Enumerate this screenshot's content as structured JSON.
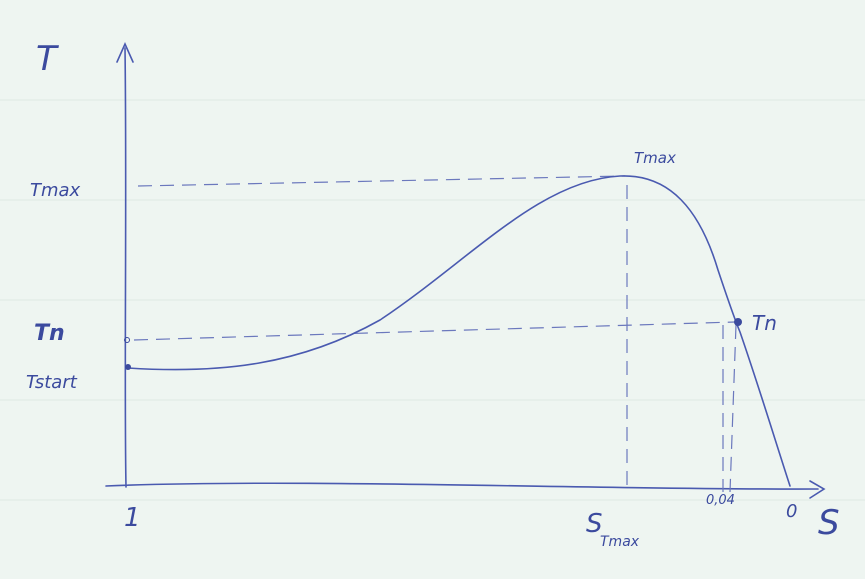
{
  "axes": {
    "y_label": "T",
    "x_label": "S"
  },
  "y_labels": {
    "t_max": "Tmax",
    "t_n": "Tn",
    "t_start": "Tstart"
  },
  "x_labels": {
    "start": "1",
    "s_tmax": {
      "main": "S",
      "sub": "Tmax"
    },
    "rated": "0,04",
    "zero": "0"
  },
  "points": {
    "peak": "Tmax",
    "rated": "Tn"
  }
}
